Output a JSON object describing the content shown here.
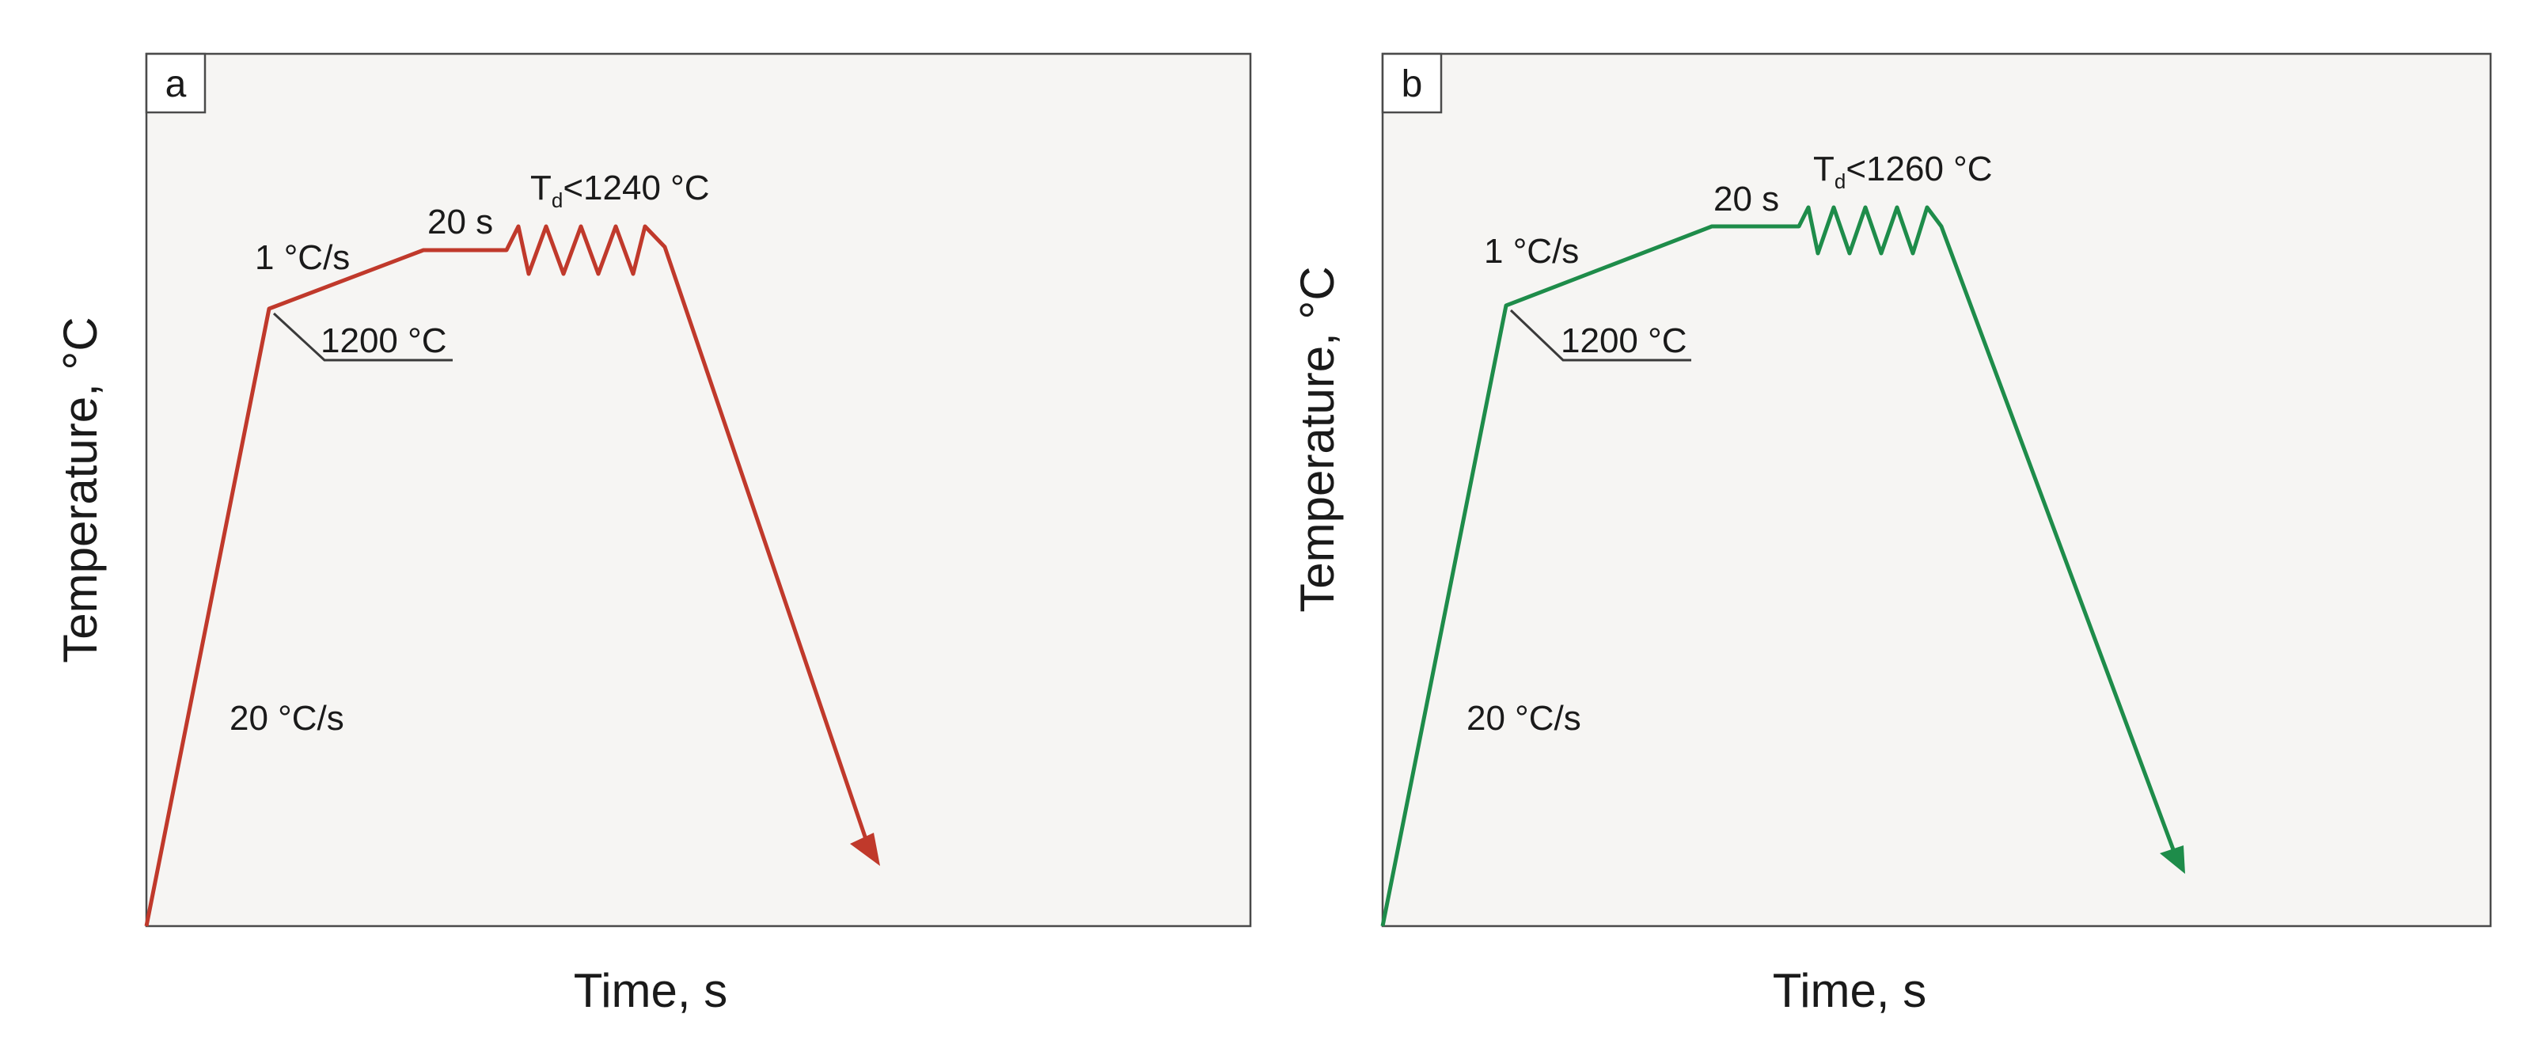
{
  "panels": [
    {
      "id": "a",
      "panel_label": "a",
      "color": "#c0392b",
      "ylabel": "Temperature, °C",
      "xlabel": "Time, s",
      "heating_rate_label": "20 °C/s",
      "hold_start_label": "1200 °C",
      "slow_rate_label": "1 °C/s",
      "hold_time_label": "20 s",
      "deform_prefix": "T",
      "deform_subscript": "d",
      "deform_suffix": "<1240 °C"
    },
    {
      "id": "b",
      "panel_label": "b",
      "color": "#1e8c4a",
      "ylabel": "Temperature, °C",
      "xlabel": "Time, s",
      "heating_rate_label": "20 °C/s",
      "hold_start_label": "1200 °C",
      "slow_rate_label": "1 °C/s",
      "hold_time_label": "20 s",
      "deform_prefix": "T",
      "deform_subscript": "d",
      "deform_suffix": "<1260 °C"
    }
  ]
}
